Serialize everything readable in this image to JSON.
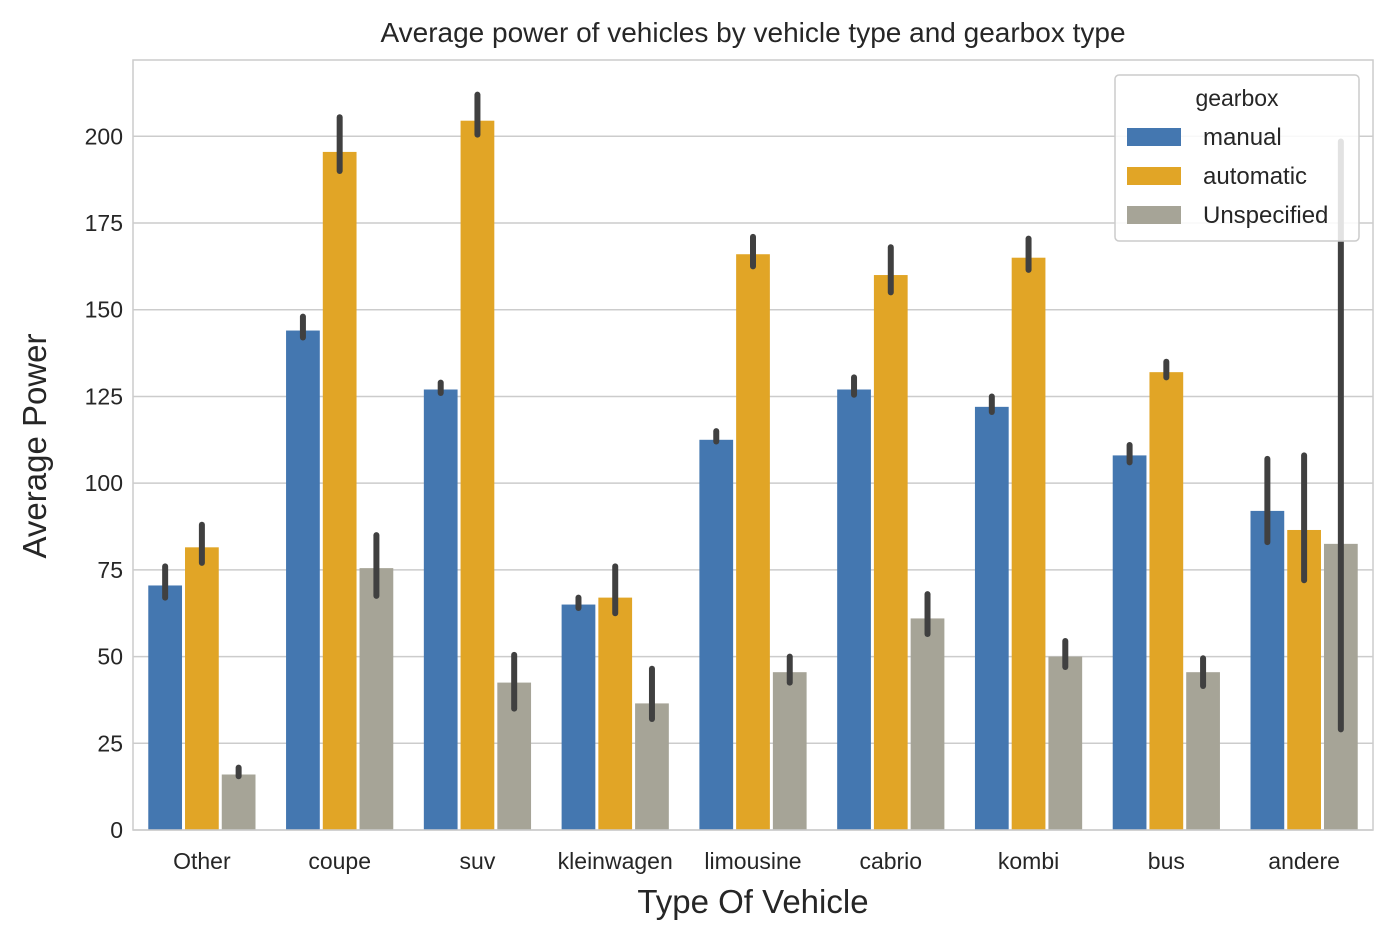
{
  "chart_data": {
    "type": "bar",
    "title": "Average power of vehicles by vehicle type and gearbox type",
    "xlabel": "Type Of Vehicle",
    "ylabel": "Average Power",
    "categories": [
      "Other",
      "coupe",
      "suv",
      "kleinwagen",
      "limousine",
      "cabrio",
      "kombi",
      "bus",
      "andere"
    ],
    "ylim": [
      0,
      222
    ],
    "yticks": [
      0,
      25,
      50,
      75,
      100,
      125,
      150,
      175,
      200
    ],
    "ytick_labels": [
      "0",
      "25",
      "50",
      "75",
      "100",
      "125",
      "150",
      "175",
      "200"
    ],
    "grid": "horizontal",
    "legend": {
      "title": "gearbox",
      "placement": "top-right"
    },
    "series": [
      {
        "name": "manual",
        "color": "#4477b0",
        "values": [
          70.5,
          144,
          127,
          65,
          112.5,
          127,
          122,
          108,
          92
        ],
        "ci_low": [
          67,
          142,
          126,
          64,
          112,
          125.5,
          120.5,
          106,
          83
        ],
        "ci_high": [
          76,
          148,
          129,
          67,
          115,
          130.5,
          125,
          111,
          107
        ]
      },
      {
        "name": "automatic",
        "color": "#e1a526",
        "values": [
          81.5,
          195.5,
          204.5,
          67,
          166,
          160,
          165,
          132,
          86.5
        ],
        "ci_low": [
          77,
          190,
          200.5,
          62.5,
          162.5,
          155,
          161.5,
          130.5,
          72
        ],
        "ci_high": [
          88,
          205.5,
          212,
          76,
          171,
          168,
          170.5,
          135,
          108
        ]
      },
      {
        "name": "Unspecified",
        "color": "#a6a497",
        "values": [
          16,
          75.5,
          42.5,
          36.5,
          45.5,
          61,
          50,
          45.5,
          82.5
        ],
        "ci_low": [
          15.5,
          67.5,
          35,
          32,
          42.5,
          56.5,
          47,
          41.5,
          29
        ],
        "ci_high": [
          18,
          85,
          50.5,
          46.5,
          50,
          68,
          54.5,
          49.5,
          198.5
        ]
      }
    ]
  }
}
